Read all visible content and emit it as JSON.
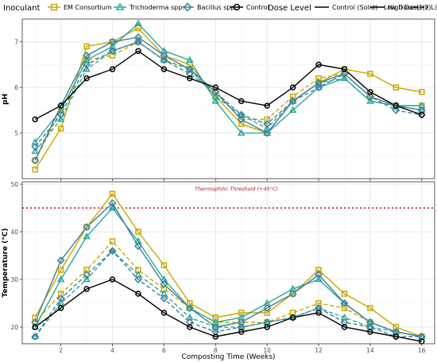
{
  "legend": {
    "inoculant_title": "Inoculant",
    "inoculants": [
      {
        "name": "EM Consortium",
        "color": "#c9a800",
        "marker": "square"
      },
      {
        "name": "Trichoderma spp.",
        "color": "#2aa79a",
        "marker": "triangle"
      },
      {
        "name": "Bacillus spp.",
        "color": "#3f7f9a",
        "marker": "diamond"
      },
      {
        "name": "Control",
        "color": "#000000",
        "marker": "circle"
      }
    ],
    "dose_title": "Dose Level",
    "doses": [
      {
        "name": "Control (Solid)",
        "dash": "solid"
      },
      {
        "name": "High Dose (2 L)",
        "dash": "solid"
      },
      {
        "name": "Low Dose (1 L)",
        "dash": "dashed"
      }
    ]
  },
  "chart_data": [
    {
      "type": "line",
      "panel": "top",
      "xlabel": "",
      "ylabel": "pH",
      "x": [
        1,
        2,
        3,
        4,
        5,
        6,
        7,
        8,
        9,
        10,
        11,
        12,
        13,
        14,
        15,
        16
      ],
      "xlim": [
        0.5,
        16.5
      ],
      "ylim": [
        4.0,
        7.5
      ],
      "xticks": [
        2,
        4,
        6,
        8,
        10,
        12,
        14,
        16
      ],
      "yticks": [
        5,
        6,
        7
      ],
      "grid": true,
      "series": [
        {
          "name": "EM Consortium",
          "dose": "High Dose (2 L)",
          "values": [
            4.2,
            5.1,
            6.9,
            7.0,
            7.3,
            6.7,
            6.5,
            5.8,
            5.2,
            5.0,
            5.7,
            6.1,
            6.4,
            6.3,
            6.0,
            5.9
          ]
        },
        {
          "name": "EM Consortium",
          "dose": "Low Dose (1 L)",
          "values": [
            4.4,
            5.5,
            6.6,
            6.7,
            7.0,
            6.6,
            6.4,
            5.9,
            5.3,
            5.3,
            5.8,
            6.2,
            6.3,
            5.8,
            5.6,
            5.6
          ]
        },
        {
          "name": "Trichoderma spp.",
          "dose": "High Dose (2 L)",
          "values": [
            4.8,
            5.5,
            6.6,
            6.9,
            7.4,
            6.8,
            6.6,
            5.7,
            5.0,
            5.0,
            5.5,
            6.0,
            6.2,
            5.7,
            5.6,
            5.6
          ]
        },
        {
          "name": "Trichoderma spp.",
          "dose": "Low Dose (1 L)",
          "values": [
            4.6,
            5.3,
            6.4,
            6.8,
            7.0,
            6.6,
            6.4,
            5.8,
            5.4,
            5.1,
            5.7,
            6.1,
            6.2,
            5.7,
            5.6,
            5.5
          ]
        },
        {
          "name": "Bacillus spp.",
          "dose": "High Dose (2 L)",
          "values": [
            4.4,
            5.6,
            6.7,
            7.0,
            7.1,
            6.7,
            6.4,
            5.9,
            5.3,
            5.0,
            5.7,
            6.1,
            6.3,
            5.8,
            5.6,
            5.5
          ]
        },
        {
          "name": "Bacillus spp.",
          "dose": "Low Dose (1 L)",
          "values": [
            4.7,
            5.4,
            6.5,
            6.8,
            7.0,
            6.6,
            6.3,
            5.9,
            5.4,
            5.2,
            5.7,
            6.0,
            6.3,
            5.8,
            5.5,
            5.4
          ]
        },
        {
          "name": "Control",
          "dose": "Control (Solid)",
          "values": [
            5.3,
            5.6,
            6.2,
            6.4,
            6.8,
            6.4,
            6.2,
            6.0,
            5.7,
            5.6,
            6.0,
            6.5,
            6.4,
            5.9,
            5.6,
            5.4
          ]
        }
      ]
    },
    {
      "type": "line",
      "panel": "bottom",
      "xlabel": "Composting Time (Weeks)",
      "ylabel": "Temperature (°C)",
      "x": [
        1,
        2,
        3,
        4,
        5,
        6,
        7,
        8,
        9,
        10,
        11,
        12,
        13,
        14,
        15,
        16
      ],
      "xlim": [
        0.5,
        16.5
      ],
      "ylim": [
        16.5,
        50.5
      ],
      "xticks": [
        2,
        4,
        6,
        8,
        10,
        12,
        14,
        16
      ],
      "yticks": [
        20,
        30,
        40,
        50
      ],
      "grid": true,
      "threshold": {
        "value": 45,
        "label": "Thermophilic Threshold (+45°C)",
        "color": "#b2182b"
      },
      "series": [
        {
          "name": "EM Consortium",
          "dose": "High Dose (2 L)",
          "values": [
            22,
            32,
            41,
            48,
            40,
            33,
            25,
            22,
            23,
            23,
            27,
            32,
            27,
            24,
            20,
            18
          ]
        },
        {
          "name": "EM Consortium",
          "dose": "Low Dose (1 L)",
          "values": [
            21,
            27,
            32,
            38,
            32,
            28,
            24,
            21,
            21,
            21,
            23,
            25,
            24,
            21,
            19,
            18
          ]
        },
        {
          "name": "Trichoderma spp.",
          "dose": "High Dose (2 L)",
          "values": [
            20,
            30,
            39,
            45,
            38,
            30,
            24,
            21,
            22,
            25,
            28,
            30,
            25,
            21,
            19,
            18
          ]
        },
        {
          "name": "Trichoderma spp.",
          "dose": "Low Dose (1 L)",
          "values": [
            18,
            25,
            30,
            36,
            31,
            27,
            22,
            20,
            20,
            21,
            22,
            24,
            22,
            20,
            19,
            18
          ]
        },
        {
          "name": "Bacillus spp.",
          "dose": "High Dose (2 L)",
          "values": [
            21,
            34,
            41,
            46,
            37,
            29,
            24,
            20,
            21,
            24,
            27,
            31,
            25,
            21,
            19,
            18
          ]
        },
        {
          "name": "Bacillus spp.",
          "dose": "Low Dose (1 L)",
          "values": [
            18,
            26,
            31,
            36,
            30,
            26,
            21,
            19,
            20,
            21,
            22,
            24,
            21,
            20,
            18,
            18
          ]
        },
        {
          "name": "Control",
          "dose": "Control (Solid)",
          "values": [
            20,
            24,
            28,
            30,
            27,
            23,
            20,
            18,
            19,
            20,
            22,
            23,
            20,
            19,
            18,
            17
          ]
        }
      ]
    }
  ]
}
